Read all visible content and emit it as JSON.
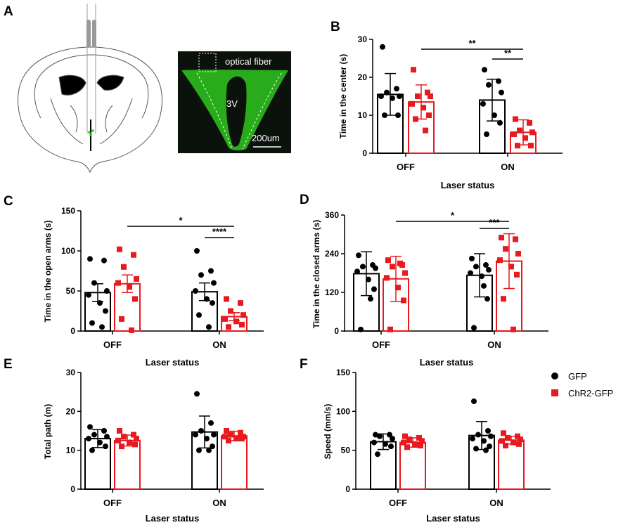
{
  "figure": {
    "panel_letters": [
      "A",
      "B",
      "C",
      "D",
      "E",
      "F"
    ],
    "micrograph": {
      "label_fiber": "optical fiber",
      "label_3v": "3V",
      "scale_bar": "200um"
    },
    "legend": {
      "gfp": {
        "label": "GFP",
        "color": "#000000"
      },
      "chr2": {
        "label": "ChR2-GFP",
        "color": "#e8191f"
      }
    },
    "colors": {
      "gfp": "#000000",
      "chr2": "#e8191f",
      "tissue": "#2fc81e",
      "background_dark": "#0b120b"
    }
  },
  "chart_data": [
    {
      "panel": "B",
      "type": "bar",
      "categories": [
        "OFF",
        "ON"
      ],
      "xlabel": "Laser status",
      "ylabel": "Time in the center (s)",
      "ylim": [
        0,
        30
      ],
      "yticks": [
        "0",
        "10",
        "20",
        "30"
      ],
      "error_bar": "sd",
      "series": [
        {
          "name": "GFP",
          "color": "#000000",
          "values": [
            15.5,
            14.0
          ],
          "errors": [
            5.5,
            5.5
          ],
          "points": [
            [
              28,
              17,
              16,
              15,
              15,
              14.5,
              10,
              10
            ],
            [
              22,
              19,
              18,
              16,
              13,
              10,
              8,
              5
            ]
          ]
        },
        {
          "name": "ChR2-GFP",
          "color": "#e8191f",
          "values": [
            13.5,
            5.5
          ],
          "errors": [
            4.5,
            3.3
          ],
          "points": [
            [
              22,
              16,
              15,
              15,
              13,
              12,
              10,
              9,
              6
            ],
            [
              9,
              8,
              6,
              5.5,
              5,
              4,
              2,
              2
            ]
          ]
        }
      ],
      "significance": [
        {
          "label": "**",
          "from": [
            0,
            1
          ],
          "to": [
            1,
            1
          ]
        },
        {
          "label": "**",
          "from": [
            1,
            0
          ],
          "to": [
            1,
            1
          ]
        }
      ]
    },
    {
      "panel": "C",
      "type": "bar",
      "categories": [
        "OFF",
        "ON"
      ],
      "xlabel": "Laser status",
      "ylabel": "Time in the open arms (s)",
      "ylim": [
        0,
        150
      ],
      "yticks": [
        "0",
        "50",
        "100",
        "150"
      ],
      "error_bar": "sem",
      "series": [
        {
          "name": "GFP",
          "color": "#000000",
          "values": [
            48,
            49
          ],
          "errors": [
            11,
            11
          ],
          "points": [
            [
              90,
              88,
              60,
              50,
              45,
              35,
              25,
              10,
              5
            ],
            [
              100,
              75,
              70,
              60,
              50,
              40,
              35,
              20,
              5
            ]
          ]
        },
        {
          "name": "ChR2-GFP",
          "color": "#e8191f",
          "values": [
            59,
            18
          ],
          "errors": [
            11,
            5
          ],
          "points": [
            [
              102,
              95,
              80,
              65,
              60,
              55,
              40,
              15,
              1
            ],
            [
              40,
              35,
              25,
              20,
              15,
              12,
              8,
              5
            ]
          ]
        }
      ],
      "significance": [
        {
          "label": "*",
          "from": [
            0,
            1
          ],
          "to": [
            1,
            1
          ]
        },
        {
          "label": "****",
          "from": [
            1,
            0
          ],
          "to": [
            1,
            1
          ]
        }
      ]
    },
    {
      "panel": "D",
      "type": "bar",
      "categories": [
        "OFF",
        "ON"
      ],
      "xlabel": "Laser status",
      "ylabel": "Time in the closed arms (s)",
      "ylim": [
        0,
        360
      ],
      "yticks": [
        "0",
        "120",
        "240",
        "360"
      ],
      "error_bar": "sd",
      "series": [
        {
          "name": "GFP",
          "color": "#000000",
          "values": [
            178,
            173
          ],
          "errors": [
            68,
            67
          ],
          "points": [
            [
              235,
              205,
              200,
              195,
              185,
              160,
              130,
              5,
              100
            ],
            [
              225,
              205,
              200,
              190,
              180,
              170,
              100,
              10,
              140
            ]
          ]
        },
        {
          "name": "ChR2-GFP",
          "color": "#e8191f",
          "values": [
            162,
            217
          ],
          "errors": [
            70,
            85
          ],
          "points": [
            [
              220,
              205,
              200,
              180,
              165,
              135,
              95,
              5,
              210
            ],
            [
              290,
              285,
              255,
              240,
              220,
              200,
              175,
              100,
              5
            ]
          ]
        }
      ],
      "significance": [
        {
          "label": "*",
          "from": [
            0,
            1
          ],
          "to": [
            1,
            1
          ]
        },
        {
          "label": "***",
          "from": [
            1,
            0
          ],
          "to": [
            1,
            1
          ]
        }
      ]
    },
    {
      "panel": "E",
      "type": "bar",
      "categories": [
        "OFF",
        "ON"
      ],
      "xlabel": "Laser status",
      "ylabel": "Total path (m)",
      "ylim": [
        0,
        30
      ],
      "yticks": [
        "0",
        "10",
        "20",
        "30"
      ],
      "error_bar": "sd",
      "series": [
        {
          "name": "GFP",
          "color": "#000000",
          "values": [
            13.0,
            14.7
          ],
          "errors": [
            2.3,
            4.1
          ],
          "points": [
            [
              16,
              15,
              14,
              13.5,
              13,
              12,
              11,
              10
            ],
            [
              24.5,
              17,
              15,
              14,
              14,
              13,
              11,
              10,
              10
            ]
          ]
        },
        {
          "name": "ChR2-GFP",
          "color": "#e8191f",
          "values": [
            12.5,
            13.7
          ],
          "errors": [
            1.4,
            1.2
          ],
          "points": [
            [
              15,
              14,
              13.5,
              13,
              12.5,
              12,
              11.5,
              11
            ],
            [
              15,
              14.5,
              14,
              13.5,
              13.5,
              13,
              13,
              12.5
            ]
          ]
        }
      ]
    },
    {
      "panel": "F",
      "type": "bar",
      "categories": [
        "OFF",
        "ON"
      ],
      "xlabel": "Laser status",
      "ylabel": "Speed (mm/s)",
      "ylim": [
        0,
        150
      ],
      "yticks": [
        "0",
        "50",
        "100",
        "150"
      ],
      "error_bar": "sd",
      "series": [
        {
          "name": "GFP",
          "color": "#000000",
          "values": [
            61,
            69
          ],
          "errors": [
            10,
            18
          ],
          "points": [
            [
              70,
              70,
              68,
              65,
              60,
              58,
              55,
              45
            ],
            [
              113,
              75,
              70,
              68,
              65,
              62,
              55,
              52,
              50
            ]
          ]
        },
        {
          "name": "ChR2-GFP",
          "color": "#e8191f",
          "values": [
            60,
            63
          ],
          "errors": [
            6,
            5
          ],
          "points": [
            [
              68,
              66,
              64,
              62,
              60,
              58,
              56,
              54
            ],
            [
              72,
              68,
              66,
              64,
              62,
              60,
              58,
              56
            ]
          ]
        }
      ]
    }
  ]
}
